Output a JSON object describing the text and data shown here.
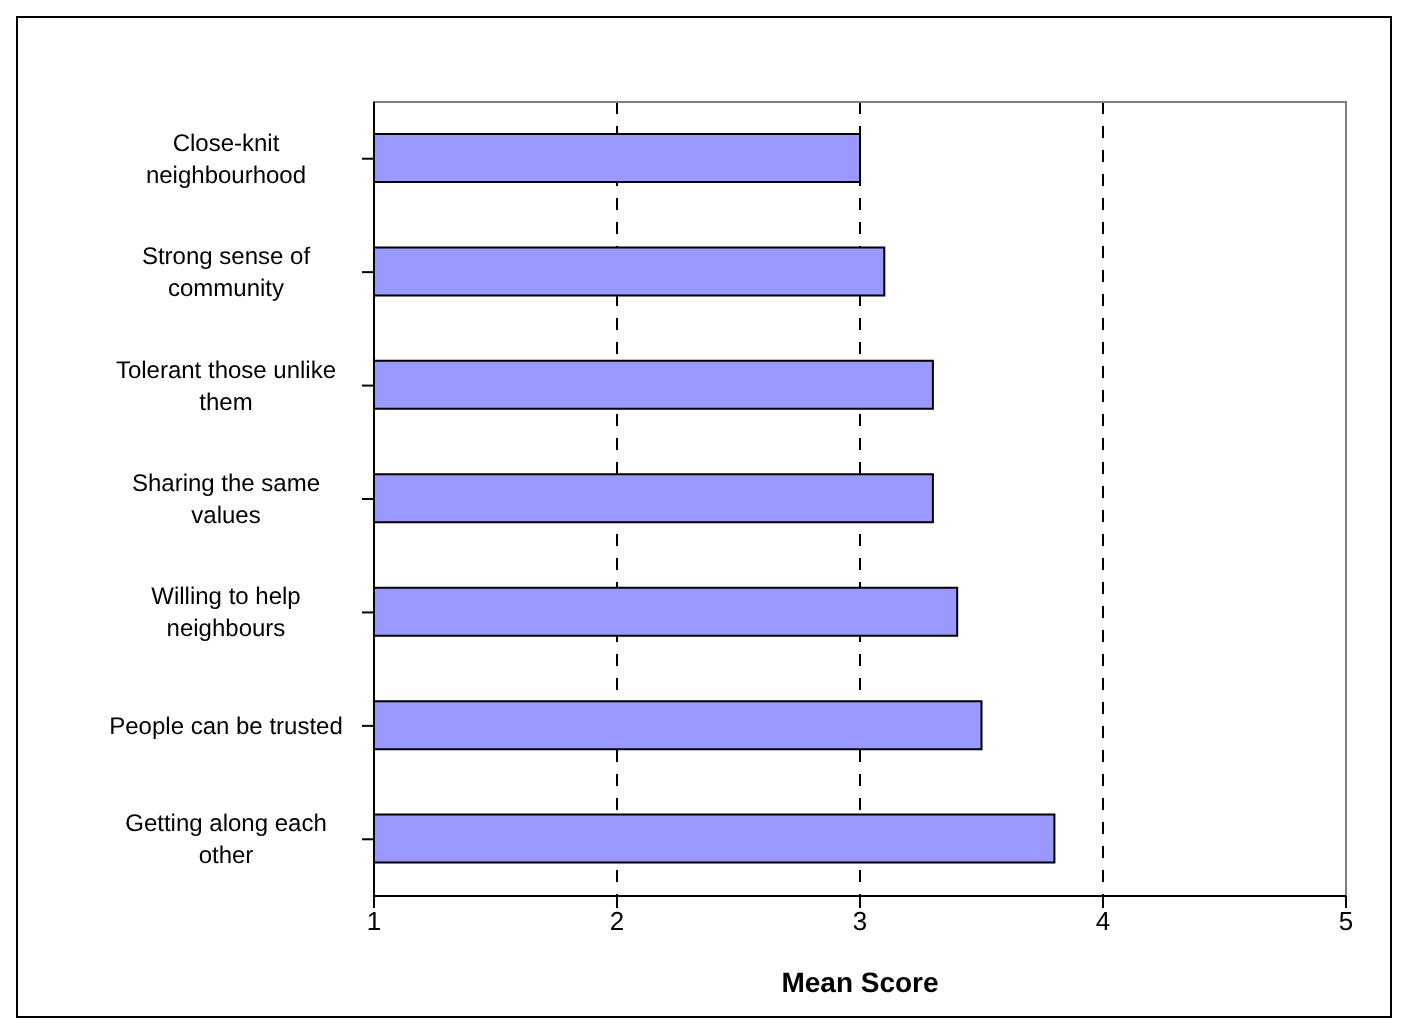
{
  "chart_data": {
    "type": "bar",
    "orientation": "horizontal",
    "xlabel": "Mean Score",
    "categories": [
      "Close-knit neighbourhood",
      "Strong sense of community",
      "Tolerant those unlike them",
      "Sharing the same values",
      "Willing to help neighbours",
      "People can be trusted",
      "Getting along each other"
    ],
    "values": [
      3.0,
      3.1,
      3.3,
      3.3,
      3.4,
      3.5,
      3.8
    ],
    "color": "#9999ff",
    "xlim": [
      1,
      5
    ],
    "xticks": [
      1,
      2,
      3,
      4,
      5
    ],
    "grid": "x"
  }
}
